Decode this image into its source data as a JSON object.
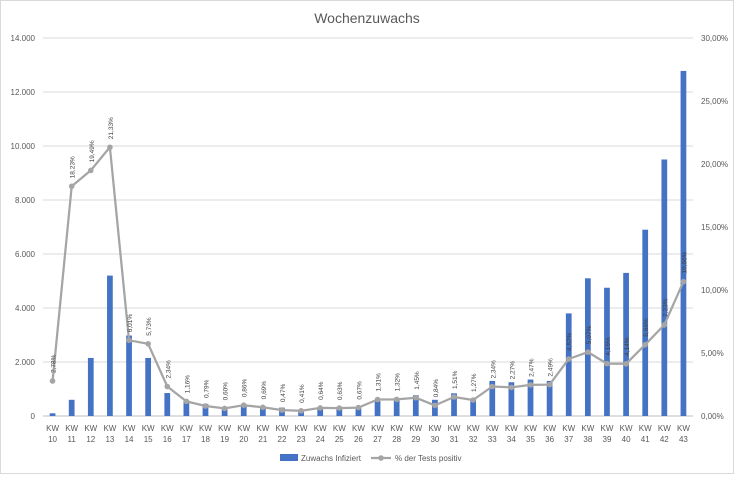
{
  "chart_data": {
    "type": "bar",
    "title": "Wochenzuwachs",
    "categories": [
      "KW 10",
      "KW 11",
      "KW 12",
      "KW 13",
      "KW 14",
      "KW 15",
      "KW 16",
      "KW 17",
      "KW 18",
      "KW 19",
      "KW 20",
      "KW 21",
      "KW 22",
      "KW 23",
      "KW 24",
      "KW 25",
      "KW 26",
      "KW 27",
      "KW 28",
      "KW 29",
      "KW 30",
      "KW 31",
      "KW 32",
      "KW 33",
      "KW 34",
      "KW 35",
      "KW 36",
      "KW 37",
      "KW 38",
      "KW 39",
      "KW 40",
      "KW 41",
      "KW 42",
      "KW 43"
    ],
    "y_left": {
      "min": 0,
      "max": 14000,
      "ticks": [
        "0",
        "2.000",
        "4.000",
        "6.000",
        "8.000",
        "10.000",
        "12.000",
        "14.000"
      ]
    },
    "y_right": {
      "min": 0,
      "max": 30,
      "ticks": [
        "0,00%",
        "5,00%",
        "10,00%",
        "15,00%",
        "20,00%",
        "25,00%",
        "30,00%"
      ]
    },
    "series": [
      {
        "name": "Zuwachs Infiziert",
        "axis": "left",
        "color": "#4472c4",
        "values": [
          100,
          600,
          2150,
          5200,
          2980,
          2150,
          850,
          580,
          450,
          330,
          380,
          350,
          310,
          230,
          290,
          310,
          330,
          560,
          670,
          770,
          600,
          840,
          650,
          1300,
          1250,
          1350,
          1300,
          3800,
          5100,
          4750,
          5300,
          6900,
          9500,
          12780
        ]
      },
      {
        "name": "% der Tests positiv",
        "axis": "right",
        "color": "#a5a5a5",
        "values": [
          2.78,
          18.23,
          19.49,
          21.33,
          6.01,
          5.73,
          2.34,
          1.16,
          0.79,
          0.6,
          0.86,
          0.69,
          0.47,
          0.41,
          0.64,
          0.63,
          0.67,
          1.31,
          1.32,
          1.45,
          0.84,
          1.51,
          1.27,
          2.34,
          2.27,
          2.47,
          2.49,
          4.52,
          5.07,
          4.16,
          4.14,
          5.66,
          7.23,
          10.66
        ],
        "labels": [
          "2,78%",
          "18,23%",
          "19,49%",
          "21,33%",
          "6,01%",
          "5,73%",
          "2,34%",
          "1,16%",
          "0,79%",
          "0,60%",
          "0,86%",
          "0,69%",
          "0,47%",
          "0,41%",
          "0,64%",
          "0,63%",
          "0,67%",
          "1,31%",
          "1,32%",
          "1,45%",
          "0,84%",
          "1,51%",
          "1,27%",
          "2,34%",
          "2,27%",
          "2,47%",
          "2,49%",
          "4,52%",
          "5,07%",
          "4,16%",
          "4,14%",
          "5,66%",
          "7,23%",
          "10,66%"
        ]
      }
    ],
    "grid": true,
    "legend": "bottom"
  }
}
